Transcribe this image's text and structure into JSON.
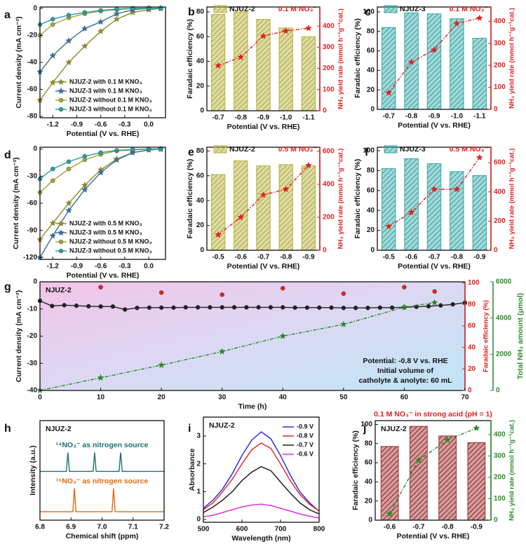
{
  "chart_data": [
    {
      "panel": "a",
      "type": "line",
      "xlabel": "Potential (V vs. RHE)",
      "ylabel": "Current density (mA cm⁻²)",
      "xlim": [
        -1.36,
        0.21
      ],
      "xticks": [
        -1.2,
        -0.9,
        -0.6,
        -0.3,
        {
          "value": 0,
          "label": "0.0"
        }
      ],
      "ylim": [
        -81,
        1
      ],
      "yticks": [
        -80,
        -60,
        -40,
        -20,
        0
      ],
      "legend": "lower right",
      "x": [
        -1.36,
        -1.2,
        -1.0,
        -0.8,
        -0.6,
        -0.4,
        -0.2,
        0,
        0.15
      ],
      "series": [
        {
          "name": "NJUZ-2 with 0.1 M KNO₃",
          "color": "#8c8a2e",
          "marker": "star",
          "values": [
            -68,
            -55,
            -40,
            -28,
            -17,
            -8,
            -3,
            -1,
            0
          ]
        },
        {
          "name": "NJUZ-3 with 0.1 M KNO₃",
          "color": "#3a6f96",
          "marker": "star",
          "values": [
            -47,
            -35,
            -24,
            -15,
            -10,
            -4,
            -1,
            0,
            0
          ]
        },
        {
          "name": "NJUZ-2 without 0.1 M KNO₃",
          "color": "#a5a53a",
          "marker": "circle",
          "values": [
            -20,
            -12,
            -7,
            -4,
            -2,
            -1,
            0,
            0,
            0
          ]
        },
        {
          "name": "NJUZ-3 without 0.1 M KNO₃",
          "color": "#2e9c9c",
          "marker": "circle",
          "values": [
            -12,
            -8,
            -5,
            -3,
            -1.5,
            -0.5,
            0,
            0,
            0
          ]
        }
      ]
    },
    {
      "panel": "b",
      "type": "bar",
      "categories": [
        "-0.7",
        "-0.8",
        "-0.9",
        "-1.0",
        "-1.1"
      ],
      "xlabel": "Potential (V vs. RHE)",
      "ylabel": "Faradaic efficiency (%)",
      "y2label": "NH₃ yield rate (mmol h⁻¹g⁻¹cat.)",
      "ylim": [
        0,
        84
      ],
      "yticks": [
        0,
        20,
        40,
        60,
        80
      ],
      "y2lim": [
        0,
        490
      ],
      "y2ticks": [
        0,
        100,
        200,
        300,
        400
      ],
      "y2color": "#e02020",
      "legend": "top",
      "note": "0.1 M NO₃⁻",
      "note_color": "#e02020",
      "series": [
        {
          "name": "NJUZ-2",
          "color": "#b5b040",
          "values": [
            78,
            80,
            74,
            67,
            60
          ]
        },
        {
          "type": "line",
          "axis": "y2",
          "color": "#e02020",
          "marker": "star",
          "dash": "dash-dot",
          "values": [
            213,
            253,
            353,
            377,
            390
          ]
        }
      ]
    },
    {
      "panel": "c",
      "type": "bar",
      "categories": [
        "-0.7",
        "-0.8",
        "-0.9",
        "-1.0",
        "-1.1"
      ],
      "xlabel": "Potential (V vs. RHE)",
      "ylabel": "Faradaic efficiency (%)",
      "y2label": "NH₃ yield rate (mmol h⁻¹g⁻¹cat.)",
      "ylim": [
        0,
        105
      ],
      "yticks": [
        0,
        20,
        40,
        60,
        80,
        100
      ],
      "y2lim": [
        0,
        465
      ],
      "y2ticks": [
        0,
        100,
        200,
        300,
        400
      ],
      "y2color": "#e02020",
      "legend": "top",
      "note": "0.1 M NO₃⁻",
      "note_color": "#e02020",
      "series": [
        {
          "name": "NJUZ-3",
          "color": "#3aa8a8",
          "values": [
            84,
            99,
            98,
            93,
            73
          ]
        },
        {
          "type": "line",
          "axis": "y2",
          "color": "#e02020",
          "marker": "star",
          "dash": "dash-dot",
          "values": [
            75,
            215,
            270,
            390,
            415
          ]
        }
      ]
    },
    {
      "panel": "d",
      "type": "line",
      "xlabel": "Potential (V vs. RHE)",
      "ylabel": "Current density (mA cm⁻²)",
      "xlim": [
        -1.36,
        0.21
      ],
      "xticks": [
        -1.2,
        -0.9,
        -0.6,
        -0.3,
        {
          "value": 0,
          "label": "0.0"
        }
      ],
      "ylim": [
        -122,
        2
      ],
      "yticks": [
        -120,
        -90,
        -60,
        -30,
        0
      ],
      "legend": "lower right",
      "x": [
        -1.36,
        -1.2,
        -1.0,
        -0.8,
        -0.6,
        -0.4,
        -0.2,
        0,
        0.15
      ],
      "series": [
        {
          "name": "NJUZ-2 with 0.5 M KNO₃",
          "color": "#8c8a2e",
          "marker": "star",
          "values": [
            -100,
            -82,
            -60,
            -40,
            -23,
            -11,
            -4,
            -1,
            0
          ]
        },
        {
          "name": "NJUZ-3 with 0.5 M KNO₃",
          "color": "#3a6f96",
          "marker": "star",
          "values": [
            -120,
            -96,
            -68,
            -45,
            -26,
            -12,
            -4,
            -1,
            0
          ]
        },
        {
          "name": "NJUZ-2 without 0.5 M KNO₃",
          "color": "#a5a53a",
          "marker": "circle",
          "values": [
            -48,
            -35,
            -22,
            -12,
            -6,
            -2,
            -1,
            0,
            0
          ]
        },
        {
          "name": "NJUZ-3 without 0.5 M KNO₃",
          "color": "#2e9c9c",
          "marker": "circle",
          "values": [
            -33,
            -22,
            -14,
            -8,
            -4,
            -1.5,
            -0.5,
            0,
            0
          ]
        }
      ]
    },
    {
      "panel": "e",
      "type": "bar",
      "categories": [
        "-0.5",
        "-0.6",
        "-0.7",
        "-0.8",
        "-0.9"
      ],
      "xlabel": "Potential (V vs. RHE)",
      "ylabel": "Faradaic efficiency (%)",
      "y2label": "NH₃ yield rate (mmol h⁻¹g⁻¹cat.)",
      "ylim": [
        0,
        83
      ],
      "yticks": [
        0,
        20,
        40,
        60,
        80
      ],
      "y2lim": [
        0,
        625
      ],
      "y2ticks": [
        0,
        200,
        400,
        600
      ],
      "y2color": "#e02020",
      "legend": "top",
      "note": "0.5 M NO₃⁻",
      "note_color": "#e02020",
      "series": [
        {
          "name": "NJUZ-2",
          "color": "#b5b040",
          "values": [
            61,
            72,
            68,
            69,
            68
          ]
        },
        {
          "type": "line",
          "axis": "y2",
          "color": "#e02020",
          "marker": "star",
          "dash": "dash-dot",
          "values": [
            94,
            200,
            336,
            370,
            515
          ]
        }
      ]
    },
    {
      "panel": "f",
      "type": "bar",
      "categories": [
        "-0.5",
        "-0.6",
        "-0.7",
        "-0.8",
        "-0.9"
      ],
      "xlabel": "Potential (V vs. RHE)",
      "ylabel": "Faradaic efficiency (%)",
      "y2label": "NH₃ yield rate (mmol h⁻¹g⁻¹cat.)",
      "ylim": [
        0,
        103.5
      ],
      "yticks": [
        0,
        20,
        40,
        60,
        80,
        100
      ],
      "y2lim": [
        0,
        706
      ],
      "y2ticks": [
        0,
        200,
        400,
        600
      ],
      "y2color": "#e02020",
      "legend": "top",
      "note": "0.5 M NO₃⁻",
      "note_color": "#e02020",
      "series": [
        {
          "name": "NJUZ-3",
          "color": "#3aa8a8",
          "values": [
            82,
            92,
            87,
            79,
            75
          ]
        },
        {
          "type": "line",
          "axis": "y2",
          "color": "#e02020",
          "marker": "star",
          "dash": "dash-dot",
          "values": [
            163,
            260,
            418,
            418,
            635
          ]
        }
      ]
    },
    {
      "panel": "g",
      "type": "line",
      "xlabel": "Time (h)",
      "ylabel": "Current density (mA cm⁻²)",
      "y2label": "Faradaic efficiency (%)",
      "y3label": "Total NH₃ amount (μmol)",
      "xlim": [
        0,
        70
      ],
      "xticks": [
        0,
        10,
        20,
        30,
        40,
        50,
        60,
        70
      ],
      "ylim": [
        -40,
        0
      ],
      "yticks": [
        -40,
        -30,
        -20,
        -10,
        0
      ],
      "y2lim": [
        0,
        101
      ],
      "y2ticks": [
        0,
        20,
        40,
        60,
        80,
        100
      ],
      "y2color": "#e02020",
      "y3lim": [
        0,
        6000
      ],
      "y3ticks": [
        0,
        2000,
        4000,
        6000
      ],
      "y3color": "#2a8a2a",
      "tag": "NJUZ-2",
      "notes": [
        "Potential: -0.8 V vs. RHE",
        "Initial volume of",
        "catholyte & anolyte: 60 mL"
      ],
      "series": [
        {
          "color": "#222222",
          "marker": "circle",
          "x": [
            0,
            2,
            4,
            6,
            8,
            10,
            12,
            14,
            16,
            18,
            20,
            22,
            24,
            26,
            28,
            30,
            32,
            34,
            36,
            38,
            40,
            42,
            44,
            46,
            48,
            50,
            52,
            54,
            56,
            58,
            60,
            62,
            64,
            66,
            68,
            70
          ],
          "values": [
            -7,
            -8.9,
            -8.6,
            -8.8,
            -9.0,
            -9.1,
            -9.1,
            -10.2,
            -9.6,
            -9.5,
            -9.5,
            -9.5,
            -9.4,
            -9.4,
            -9.4,
            -9.4,
            -9.4,
            -9.4,
            -9.4,
            -9.4,
            -9.4,
            -9.5,
            -9.5,
            -9.5,
            -9.5,
            -9.6,
            -9.6,
            -9.6,
            -9.5,
            -9.5,
            -9.4,
            -9.2,
            -9.0,
            -8.7,
            -8.3,
            -7.7
          ]
        },
        {
          "type": "scatter",
          "axis": "y2",
          "color": "#e02020",
          "marker": "circle",
          "x": [
            10,
            20,
            30,
            40,
            50,
            60,
            65
          ],
          "values": [
            96,
            91,
            89,
            95,
            90,
            96,
            92
          ]
        },
        {
          "axis": "y3",
          "color": "#2a8a2a",
          "marker": "star",
          "dash": "dash-dot",
          "x": [
            0,
            10,
            20,
            30,
            40,
            50,
            60,
            65
          ],
          "values": [
            0,
            700,
            1400,
            2150,
            3000,
            3650,
            4600,
            4850
          ]
        }
      ]
    },
    {
      "panel": "h",
      "type": "line",
      "xlabel": "Chemical shift (ppm)",
      "ylabel": "Intensity (a.u.)",
      "xlim": [
        6.8,
        7.2
      ],
      "xticks": [
        6.8,
        6.9,
        {
          "value": 7,
          "label": "7.0"
        },
        7.1,
        7.2
      ],
      "ylim": [
        0,
        10
      ],
      "tag": "NJUZ-2",
      "legend": "inline",
      "series": [
        {
          "name": "¹⁴NO₃⁻ as nitrogen source",
          "color": "#1f6f6f",
          "x": [
            6.8,
            6.885,
            6.89,
            6.895,
            6.971,
            6.976,
            6.981,
            7.055,
            7.06,
            7.065,
            7.2
          ],
          "values": [
            4.9,
            4.9,
            6.8,
            4.9,
            4.9,
            6.8,
            4.9,
            4.9,
            6.8,
            4.9,
            4.9
          ]
        },
        {
          "name": "¹⁵NO₃⁻ as nitrogen source",
          "color": "#e06a10",
          "x": [
            6.8,
            6.906,
            6.911,
            6.916,
            7.032,
            7.037,
            7.042,
            7.2
          ],
          "values": [
            0.85,
            0.85,
            3.2,
            0.85,
            0.85,
            3.2,
            0.85,
            0.85
          ]
        }
      ]
    },
    {
      "panel": "i",
      "type": "line",
      "xlabel": "Wavelength (nm)",
      "ylabel": "Absorbance",
      "xlim": [
        500,
        800
      ],
      "xticks": [
        500,
        600,
        700,
        800
      ],
      "ylim": [
        -0.1,
        3.68
      ],
      "yticks": [
        0,
        1,
        2,
        3
      ],
      "tag": "NJUZ-2",
      "legend": "upper right",
      "x": [
        500,
        525,
        550,
        575,
        600,
        625,
        650,
        675,
        700,
        725,
        750,
        775,
        800
      ],
      "series": [
        {
          "name": "-0.9 V",
          "color": "#2020e0",
          "values": [
            0.4,
            0.7,
            1.1,
            1.65,
            2.3,
            2.85,
            3.15,
            2.9,
            2.3,
            1.6,
            1.0,
            0.6,
            0.3
          ]
        },
        {
          "name": "-0.8 V",
          "color": "#e02020",
          "values": [
            0.35,
            0.6,
            1.0,
            1.45,
            2.0,
            2.5,
            2.75,
            2.55,
            2.0,
            1.4,
            0.9,
            0.55,
            0.3
          ]
        },
        {
          "name": "-0.7 V",
          "color": "#111111",
          "values": [
            0.25,
            0.45,
            0.7,
            1.0,
            1.4,
            1.7,
            1.9,
            1.75,
            1.35,
            0.95,
            0.6,
            0.35,
            0.2
          ]
        },
        {
          "name": "-0.6 V",
          "color": "#e020e0",
          "values": [
            0.1,
            0.15,
            0.25,
            0.35,
            0.45,
            0.52,
            0.55,
            0.5,
            0.4,
            0.3,
            0.2,
            0.12,
            0.05
          ]
        }
      ]
    },
    {
      "panel": "j",
      "type": "bar",
      "categories": [
        "-0.6",
        "-0.7",
        "-0.8",
        "-0.9"
      ],
      "xlabel": "Potential (V vs. RHE)",
      "ylabel": "Faradaic efficiency (%)",
      "y2label": "NH₃ yield rate (mmol h⁻¹g⁻¹cat.)",
      "ylim": [
        0,
        104
      ],
      "yticks": [
        0,
        20,
        40,
        60,
        80,
        100
      ],
      "y2lim": [
        0,
        465
      ],
      "y2ticks": [
        0,
        100,
        200,
        300,
        400
      ],
      "y2color": "#2a8a2a",
      "tag": "NJUZ-2",
      "note": "0.1 M NO₃⁻ in strong  acid (pH = 1)",
      "note_color": "#e02020",
      "series": [
        {
          "color": "#9b2d2d",
          "values": [
            77,
            98,
            88,
            81
          ]
        },
        {
          "type": "line",
          "axis": "y2",
          "color": "#2a8a2a",
          "marker": "star",
          "dash": "dash-dot",
          "values": [
            30,
            280,
            375,
            430
          ]
        }
      ]
    }
  ]
}
